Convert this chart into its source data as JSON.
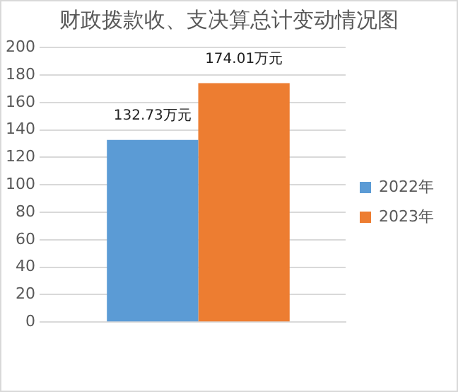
{
  "chart_data": {
    "type": "bar",
    "title": "财政拨款收、支决算总计变动情况图",
    "categories": [
      null
    ],
    "series": [
      {
        "name": "2022年",
        "color": "#5b9bd5",
        "values": [
          132.73
        ],
        "value_labels": [
          "132.73万元"
        ]
      },
      {
        "name": "2023年",
        "color": "#ed7d31",
        "values": [
          174.01
        ],
        "value_labels": [
          "174.01万元"
        ]
      }
    ],
    "ylim": [
      0,
      200
    ],
    "yticks": [
      0,
      20,
      40,
      60,
      80,
      100,
      120,
      140,
      160,
      180,
      200
    ],
    "grid": "y",
    "legend": "right"
  }
}
